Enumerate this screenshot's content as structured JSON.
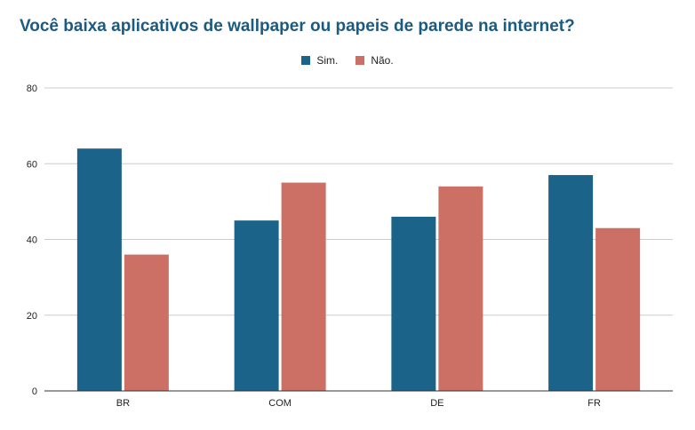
{
  "chart_data": {
    "type": "bar",
    "title": "Você baixa aplicativos de wallpaper ou papeis de parede na internet?",
    "categories": [
      "BR",
      "COM",
      "DE",
      "FR"
    ],
    "series": [
      {
        "name": "Sim.",
        "values": [
          64,
          45,
          46,
          57
        ],
        "color": "#1b6388"
      },
      {
        "name": "Não.",
        "values": [
          36,
          55,
          54,
          43
        ],
        "color": "#cc7066"
      }
    ],
    "ylim": [
      0,
      80
    ],
    "yticks": [
      0,
      20,
      40,
      60,
      80
    ],
    "grid": true,
    "legend_position": "top-center",
    "xlabel": "",
    "ylabel": ""
  }
}
